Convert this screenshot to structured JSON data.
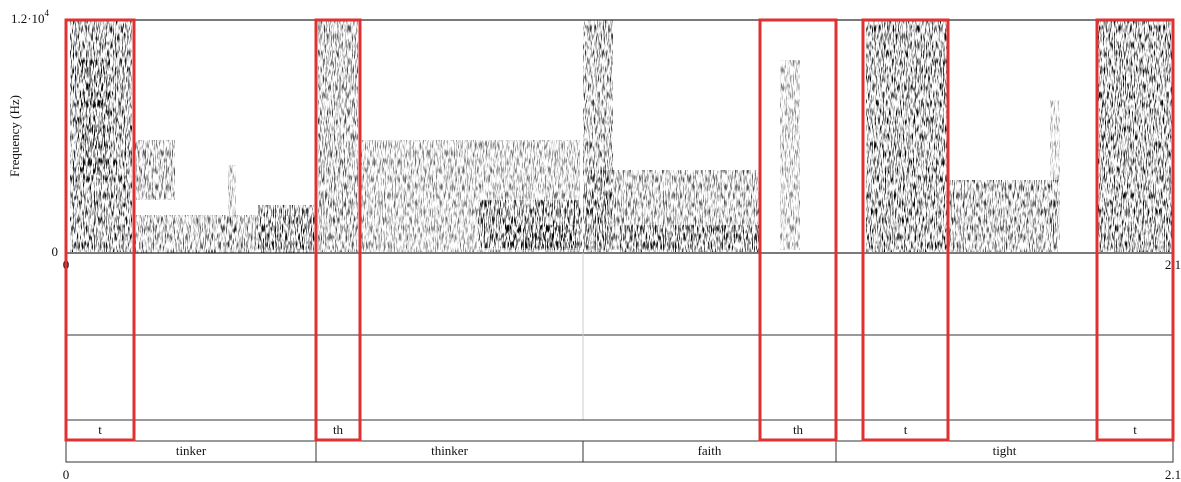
{
  "y_axis": {
    "label": "Frequency (Hz)",
    "top": "1.2·10",
    "top_exponent": "4",
    "bottom": "0"
  },
  "x_axis_top": {
    "start": "0",
    "end": "2.1"
  },
  "x_axis_bottom": {
    "start": "0",
    "end": "2.1"
  },
  "phones": [
    "t",
    "th",
    "th",
    "t",
    "t"
  ],
  "words": [
    "tinker",
    "thinker",
    "faith",
    "tight"
  ]
}
